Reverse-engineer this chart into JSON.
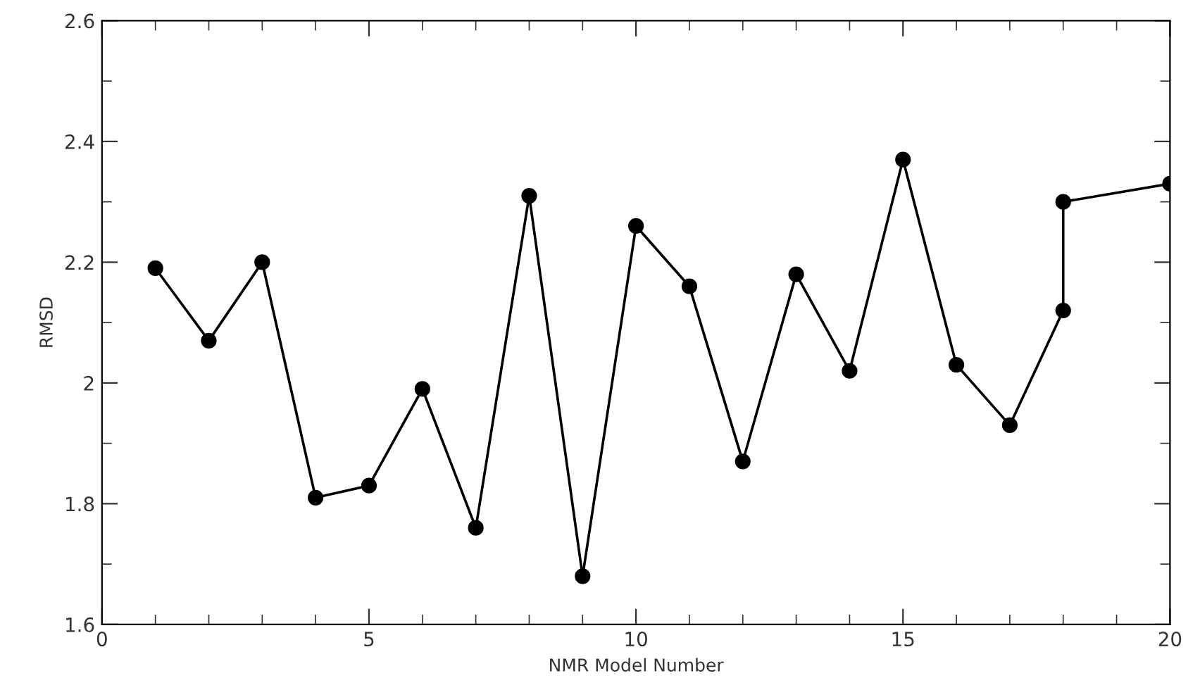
{
  "chart_data": {
    "type": "line",
    "xlabel": "NMR Model Number",
    "ylabel": "RMSD",
    "x": [
      1,
      2,
      3,
      4,
      5,
      6,
      7,
      8,
      9,
      10,
      11,
      12,
      13,
      14,
      15,
      16,
      17,
      18,
      18,
      20
    ],
    "series": [
      {
        "color": "#000000",
        "values": [
          2.19,
          2.07,
          2.2,
          1.81,
          1.83,
          1.99,
          1.76,
          2.31,
          1.68,
          2.26,
          2.16,
          1.87,
          2.18,
          2.02,
          2.37,
          2.03,
          1.93,
          2.12,
          2.3,
          2.33
        ]
      }
    ],
    "xlim": [
      0,
      20
    ],
    "xticks": [
      0,
      5,
      10,
      15,
      20
    ],
    "ylim": [
      1.6,
      2.6
    ],
    "yticks": [
      1.6,
      1.8,
      2,
      2.2,
      2.4,
      2.6
    ],
    "marker": "circle",
    "line_style": "solid",
    "grid": false,
    "legend": false
  }
}
